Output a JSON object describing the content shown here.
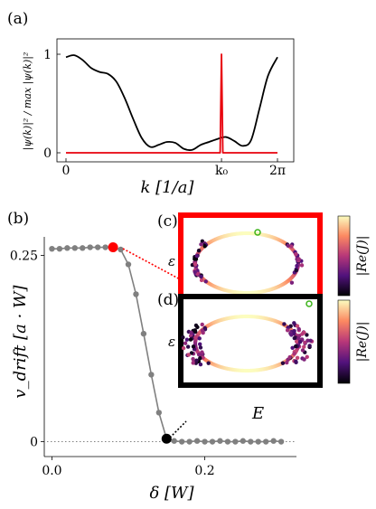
{
  "panel_labels": {
    "a": "(a)",
    "b": "(b)",
    "c": "(c)",
    "d": "(d)"
  },
  "chart_data": [
    {
      "panel": "a",
      "type": "line",
      "xlabel": "k [1/a]",
      "ylabel": "|ψ(k)|² / max |ψ(k)|²",
      "xticks": [
        "0",
        "k₀",
        "2π"
      ],
      "yticks": [
        "0",
        "1"
      ],
      "xlim": [
        0,
        6.283
      ],
      "ylim": [
        0,
        1
      ],
      "colors": {
        "black_series": "#000000",
        "red_series": "#e8000b"
      },
      "series": [
        {
          "color": "#000000",
          "x": [
            0.0,
            0.25,
            0.5,
            0.75,
            1.0,
            1.25,
            1.5,
            1.75,
            2.0,
            2.25,
            2.5,
            2.75,
            3.0,
            3.25,
            3.5,
            3.75,
            4.0,
            4.25,
            4.5,
            4.75,
            5.0,
            5.25,
            5.5,
            5.75,
            6.0,
            6.283
          ],
          "y": [
            0.97,
            0.99,
            0.94,
            0.86,
            0.82,
            0.8,
            0.72,
            0.55,
            0.34,
            0.15,
            0.06,
            0.08,
            0.11,
            0.1,
            0.04,
            0.03,
            0.08,
            0.11,
            0.14,
            0.16,
            0.12,
            0.07,
            0.13,
            0.45,
            0.78,
            0.97
          ]
        },
        {
          "color": "#e8000b",
          "x": [
            0.0,
            4.5,
            4.58,
            4.62,
            4.66,
            4.74,
            6.283
          ],
          "y": [
            0.0,
            0.0,
            0.0,
            1.0,
            0.0,
            0.0,
            0.0
          ]
        }
      ]
    },
    {
      "panel": "b",
      "type": "line",
      "xlabel": "δ [W]",
      "ylabel": "v_drift [a · W]",
      "xticks": [
        0.0,
        0.2
      ],
      "yticks": [
        0,
        0.25
      ],
      "xlim": [
        -0.01,
        0.32
      ],
      "ylim": [
        -0.02,
        0.275
      ],
      "colors": {
        "line": "#808080",
        "highlight_c": "#ff0000",
        "highlight_d": "#000000"
      },
      "x": [
        0.0,
        0.01,
        0.02,
        0.03,
        0.04,
        0.05,
        0.06,
        0.07,
        0.08,
        0.09,
        0.1,
        0.11,
        0.12,
        0.13,
        0.14,
        0.15,
        0.16,
        0.17,
        0.18,
        0.19,
        0.2,
        0.21,
        0.22,
        0.23,
        0.24,
        0.25,
        0.26,
        0.27,
        0.28,
        0.29,
        0.3
      ],
      "y": [
        0.259,
        0.259,
        0.26,
        0.26,
        0.26,
        0.261,
        0.261,
        0.261,
        0.261,
        0.258,
        0.238,
        0.198,
        0.145,
        0.09,
        0.039,
        0.004,
        0.001,
        0.0,
        0.0,
        0.001,
        0.0,
        0.0,
        0.001,
        0.0,
        0.0,
        0.001,
        0.0,
        0.0,
        0.0,
        0.001,
        0.0
      ],
      "highlight_points": [
        {
          "panel": "c",
          "x": 0.08,
          "y": 0.261,
          "color": "#ff0000"
        },
        {
          "panel": "d",
          "x": 0.15,
          "y": 0.004,
          "color": "#000000"
        }
      ]
    }
  ],
  "insets": {
    "c": {
      "ylabel": "ε",
      "colorbar_label": "|Re(J)|",
      "frame_color": "#ff0000"
    },
    "d": {
      "ylabel": "ε",
      "xlabel": "E",
      "colorbar_label": "|Re(J)|",
      "frame_color": "#000000"
    }
  }
}
